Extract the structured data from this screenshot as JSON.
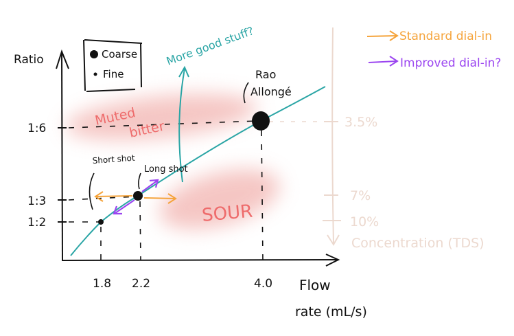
{
  "axes": {
    "y_label": "Ratio",
    "x_label_line1": "Flow",
    "x_label_line2": "rate (mL/s)",
    "y_ticks": [
      "1:6",
      "1:3",
      "1:2"
    ],
    "x_ticks": [
      "1.8",
      "2.2",
      "4.0"
    ],
    "tds_label": "Concentration (TDS)",
    "tds_ticks": [
      "3.5%",
      "7%",
      "10%"
    ]
  },
  "legend": {
    "coarse": "Coarse",
    "fine": "Fine",
    "standard": "Standard dial-in",
    "improved": "Improved dial-in?"
  },
  "annotations": {
    "more_good": "More good stuff?",
    "muted": "Muted",
    "bitter": "bitter",
    "sour": "SOUR",
    "short_shot": "Short shot",
    "long_shot": "Long shot",
    "rao_line1": "Rao",
    "rao_line2": "Allongé"
  },
  "colors": {
    "curve": "#2aa5a5",
    "standard": "#f5a33a",
    "improved": "#9b45f0",
    "region": "#f2b4b0",
    "region_text": "#ee6b6b",
    "tds": "#ecd9cf"
  },
  "chart_data": {
    "type": "scatter",
    "points": [
      {
        "name": "Short shot",
        "flow_ml_s": 1.8,
        "ratio": "1:2",
        "grind": "Fine"
      },
      {
        "name": "Long shot",
        "flow_ml_s": 2.2,
        "ratio": "1:3",
        "grind": "Coarse"
      },
      {
        "name": "Rao Allongé",
        "flow_ml_s": 4.0,
        "ratio": "1:6",
        "grind": "Coarse"
      }
    ]
  }
}
